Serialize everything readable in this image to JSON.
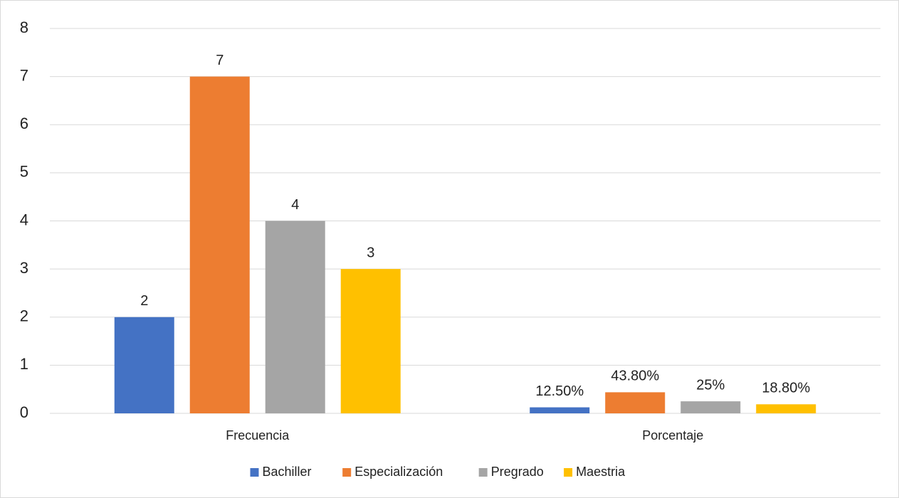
{
  "chart_data": {
    "type": "bar",
    "categories": [
      "Frecuencia",
      "Porcentaje"
    ],
    "series": [
      {
        "name": "Bachiller",
        "color": "#4472c4",
        "values": [
          2,
          0.125
        ],
        "value_labels": [
          "2",
          "12.50%"
        ]
      },
      {
        "name": "Especialización",
        "color": "#ed7d31",
        "values": [
          7,
          0.438
        ],
        "value_labels": [
          "7",
          "43.80%"
        ]
      },
      {
        "name": "Pregrado",
        "color": "#a5a5a5",
        "values": [
          4,
          0.25
        ],
        "value_labels": [
          "4",
          "25%"
        ]
      },
      {
        "name": "Maestria",
        "color": "#ffc000",
        "values": [
          3,
          0.188
        ],
        "value_labels": [
          "3",
          "18.80%"
        ]
      }
    ],
    "ylim": [
      0,
      8
    ],
    "yticks": [
      0,
      1,
      2,
      3,
      4,
      5,
      6,
      7,
      8
    ],
    "grid": true,
    "legend": "bottom"
  }
}
